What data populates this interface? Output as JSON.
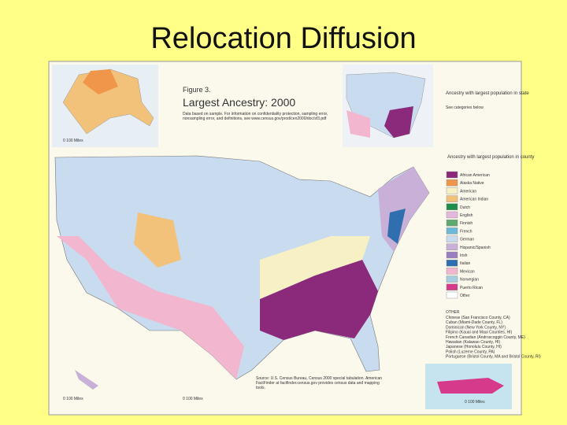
{
  "slide": {
    "title": "Relocation Diffusion"
  },
  "map": {
    "figure_label": "Figure 3.",
    "title": "Largest Ancestry: 2000",
    "note": "Data based on sample. For information on confidentiality protection, sampling error, nonsampling error, and definitions, see www.census.gov/prod/cen2000/doc/sf3.pdf",
    "state_legend_title": "Ancestry with largest population in state",
    "state_legend_subtitle": "See categories below",
    "county_legend_title": "Ancestry with largest population in county",
    "legend": [
      {
        "name": "African American",
        "color": "#8b2a7a"
      },
      {
        "name": "Alaska Native",
        "color": "#f0964a"
      },
      {
        "name": "American",
        "color": "#f7f0c4"
      },
      {
        "name": "American Indian",
        "color": "#f3c27a"
      },
      {
        "name": "Dutch",
        "color": "#1e8f4a"
      },
      {
        "name": "English",
        "color": "#e4b8de"
      },
      {
        "name": "Finnish",
        "color": "#5fa96e"
      },
      {
        "name": "French",
        "color": "#6bb8d8"
      },
      {
        "name": "German",
        "color": "#c9dbee"
      },
      {
        "name": "Hispanic/Spanish",
        "color": "#c9b0d8"
      },
      {
        "name": "Irish",
        "color": "#9a7fc0"
      },
      {
        "name": "Italian",
        "color": "#2f6fb0"
      },
      {
        "name": "Mexican",
        "color": "#f2b6cf"
      },
      {
        "name": "Norwegian",
        "color": "#a6cde0"
      },
      {
        "name": "Puerto Rican",
        "color": "#d63a8a"
      },
      {
        "name": "Other",
        "color": "#ffffff"
      }
    ],
    "other_title": "OTHER",
    "other_notes": [
      "Chinese (San Francisco County, CA)",
      "Cuban (Miami-Dade County, FL)",
      "Dominican (New York County, NY)",
      "Filipino (Kauai and Maui Counties, HI)",
      "French Canadian (Androscoggin County, ME)",
      "Hawaiian (Kalawao County, HI)",
      "Japanese (Honolulu County, HI)",
      "Polish (Luzerne County, PA)",
      "Portuguese (Bristol County, MA and Bristol County, RI)"
    ],
    "source": "Source: U.S. Census Bureau, Census 2000 special tabulation. American FactFinder at factfinder.census.gov provides census data and mapping tools.",
    "scale_label": "0   100 Miles"
  }
}
